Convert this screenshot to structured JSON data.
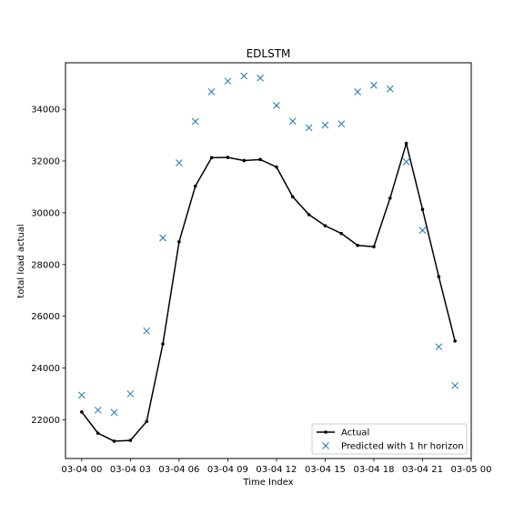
{
  "chart_data": {
    "type": "line",
    "title": "EDLSTM",
    "xlabel": "Time Index",
    "ylabel": "total load actual",
    "x": [
      "03-04 00",
      "03-04 01",
      "03-04 02",
      "03-04 03",
      "03-04 04",
      "03-04 05",
      "03-04 06",
      "03-04 07",
      "03-04 08",
      "03-04 09",
      "03-04 10",
      "03-04 11",
      "03-04 12",
      "03-04 13",
      "03-04 14",
      "03-04 15",
      "03-04 16",
      "03-04 17",
      "03-04 18",
      "03-04 19",
      "03-04 20",
      "03-04 21",
      "03-04 22",
      "03-04 23"
    ],
    "xlim": [
      "03-03 23:00",
      "03-05 00:00"
    ],
    "ylim": [
      20500,
      35800
    ],
    "x_ticks": [
      "03-04 00",
      "03-04 03",
      "03-04 06",
      "03-04 09",
      "03-04 12",
      "03-04 15",
      "03-04 18",
      "03-04 21",
      "03-05 00"
    ],
    "y_ticks": [
      "22000",
      "24000",
      "26000",
      "28000",
      "30000",
      "32000",
      "34000"
    ],
    "series": [
      {
        "name": "Actual",
        "style": "line-dot",
        "color": "#000000",
        "values": [
          22300,
          21480,
          21170,
          21200,
          21930,
          24930,
          28880,
          31030,
          32130,
          32140,
          32020,
          32060,
          31770,
          30620,
          29930,
          29500,
          29200,
          28740,
          28690,
          30570,
          32680,
          30130,
          27530,
          25040
        ]
      },
      {
        "name": "Predicted with 1 hr horizon",
        "style": "x-marker",
        "color": "#1f77b4",
        "values": [
          22950,
          22370,
          22280,
          23000,
          25430,
          29030,
          31930,
          33530,
          34680,
          35090,
          35290,
          35210,
          34150,
          33540,
          33290,
          33390,
          33440,
          34680,
          34930,
          34790,
          31970,
          29320,
          24820,
          23320
        ]
      }
    ],
    "legend_position": "lower-right",
    "grid": false
  }
}
